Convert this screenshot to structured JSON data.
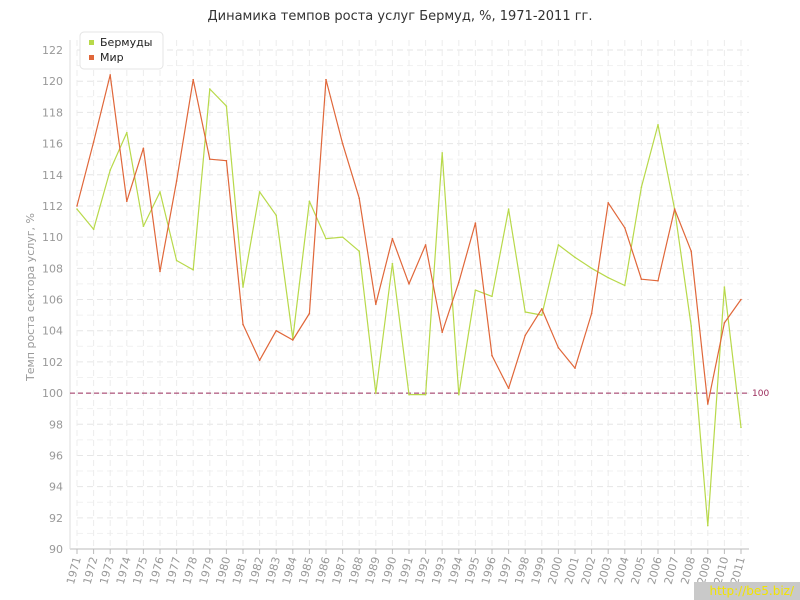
{
  "chart_data": {
    "type": "line",
    "title": "Динамика темпов роста услуг Бермуд, %, 1971-2011 гг.",
    "ylabel": "Темп роста сектора услуг, %",
    "xlabel": "",
    "ylim": [
      90,
      122
    ],
    "yticks": [
      90,
      92,
      94,
      96,
      98,
      100,
      102,
      104,
      106,
      108,
      110,
      112,
      114,
      116,
      118,
      120,
      122
    ],
    "x": [
      "1971",
      "1972",
      "1973",
      "1974",
      "1975",
      "1976",
      "1977",
      "1978",
      "1979",
      "1980",
      "1981",
      "1982",
      "1983",
      "1984",
      "1985",
      "1986",
      "1987",
      "1988",
      "1989",
      "1990",
      "1991",
      "1992",
      "1993",
      "1994",
      "1995",
      "1996",
      "1997",
      "1998",
      "1999",
      "2000",
      "2001",
      "2002",
      "2003",
      "2004",
      "2005",
      "2006",
      "2007",
      "2008",
      "2009",
      "2010",
      "2011"
    ],
    "series": [
      {
        "name": "Бермуды",
        "color": "#b8d94a",
        "values": [
          111.8,
          110.5,
          114.3,
          116.7,
          110.7,
          112.9,
          108.5,
          107.9,
          119.5,
          118.4,
          106.8,
          112.9,
          111.4,
          103.5,
          112.3,
          109.9,
          110.0,
          109.1,
          100.0,
          108.3,
          99.9,
          99.9,
          115.4,
          99.9,
          106.6,
          106.2,
          111.8,
          105.2,
          105.0,
          109.5,
          108.7,
          108.0,
          107.4,
          106.9,
          113.2,
          117.2,
          111.8,
          104.3,
          91.5,
          106.8,
          97.8
        ]
      },
      {
        "name": "Мир",
        "color": "#e0673a",
        "values": [
          112.0,
          116.1,
          120.4,
          112.3,
          115.7,
          107.8,
          113.6,
          120.1,
          115.0,
          114.9,
          104.4,
          102.1,
          104.0,
          103.4,
          105.1,
          120.1,
          116.0,
          112.5,
          105.7,
          109.9,
          107.0,
          109.5,
          103.9,
          107.1,
          110.9,
          102.4,
          100.3,
          103.7,
          105.4,
          102.9,
          101.6,
          105.1,
          112.2,
          110.6,
          107.3,
          107.2,
          111.8,
          109.1,
          99.3,
          104.5,
          106.0
        ]
      }
    ],
    "reference_line": {
      "value": 100,
      "label": "100",
      "color": "#9b2c5c"
    },
    "grid": true,
    "legend_position": "top-left"
  },
  "watermark": "http://be5.biz/"
}
